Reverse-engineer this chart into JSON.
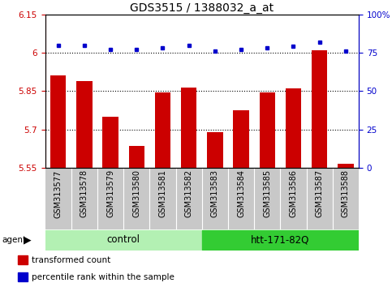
{
  "title": "GDS3515 / 1388032_a_at",
  "samples": [
    "GSM313577",
    "GSM313578",
    "GSM313579",
    "GSM313580",
    "GSM313581",
    "GSM313582",
    "GSM313583",
    "GSM313584",
    "GSM313585",
    "GSM313586",
    "GSM313587",
    "GSM313588"
  ],
  "transformed_count": [
    5.91,
    5.89,
    5.75,
    5.635,
    5.845,
    5.865,
    5.69,
    5.775,
    5.845,
    5.86,
    6.01,
    5.565
  ],
  "percentile_rank": [
    80,
    80,
    77,
    77,
    78,
    80,
    76,
    77,
    78,
    79,
    82,
    76
  ],
  "ylim_left": [
    5.55,
    6.15
  ],
  "ylim_right": [
    0,
    100
  ],
  "yticks_left": [
    5.55,
    5.7,
    5.85,
    6.0,
    6.15
  ],
  "yticks_right": [
    0,
    25,
    50,
    75,
    100
  ],
  "ytick_labels_left": [
    "5.55",
    "5.7",
    "5.85",
    "6",
    "6.15"
  ],
  "ytick_labels_right": [
    "0",
    "25",
    "50",
    "75",
    "100%"
  ],
  "hlines": [
    6.0,
    5.85,
    5.7
  ],
  "groups": [
    {
      "label": "control",
      "start": 0,
      "end": 5,
      "color": "#b3f0b3"
    },
    {
      "label": "htt-171-82Q",
      "start": 6,
      "end": 11,
      "color": "#33cc33"
    }
  ],
  "bar_color": "#CC0000",
  "dot_color": "#0000CC",
  "bar_width": 0.6,
  "legend_items": [
    {
      "color": "#CC0000",
      "label": "transformed count"
    },
    {
      "color": "#0000CC",
      "label": "percentile rank within the sample"
    }
  ],
  "agent_label": "agent",
  "tick_label_color_left": "#CC0000",
  "tick_label_color_right": "#0000CC",
  "title_fontsize": 10,
  "axis_tick_fontsize": 7.5,
  "sample_tick_fontsize": 7,
  "group_label_fontsize": 8.5,
  "xtick_bg_color": "#C8C8C8"
}
